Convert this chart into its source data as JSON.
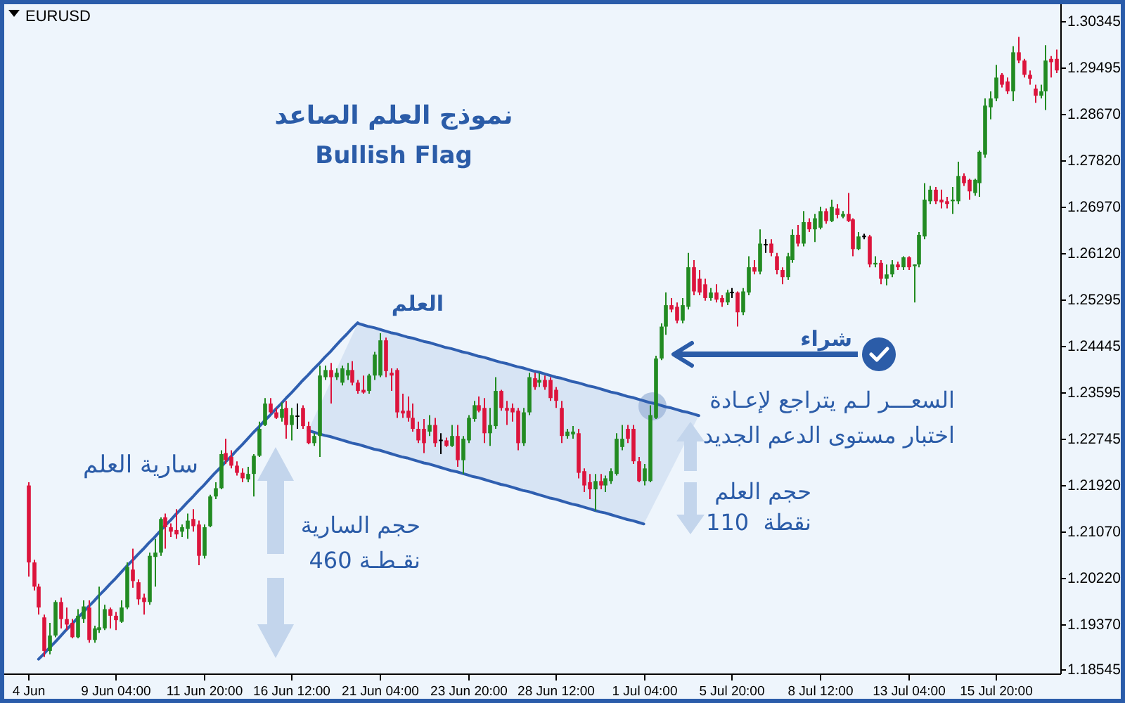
{
  "chart_data": {
    "type": "candlestick",
    "title": "نموذج العلم الصاعد",
    "subtitle": "Bullish Flag",
    "categories": [
      "4 Jun",
      null,
      null,
      null,
      null,
      null,
      null,
      null,
      null,
      null,
      null,
      null,
      null,
      null,
      null,
      null,
      "9 Jun 04:00",
      null,
      null,
      null,
      null,
      null,
      null,
      null,
      null,
      null,
      null,
      null,
      null,
      null,
      null,
      null,
      "11 Jun 20:00",
      null,
      null,
      null,
      null,
      null,
      null,
      null,
      null,
      null,
      null,
      null,
      null,
      null,
      null,
      null,
      "16 Jun 12:00",
      null,
      null,
      null,
      null,
      null,
      null,
      null,
      null,
      null,
      null,
      null,
      null,
      null,
      null,
      null,
      "21 Jun 04:00",
      null,
      null,
      null,
      null,
      null,
      null,
      null,
      null,
      null,
      null,
      null,
      null,
      null,
      null,
      null,
      "23 Jun 20:00",
      null,
      null,
      null,
      null,
      null,
      null,
      null,
      null,
      null,
      null,
      null,
      null,
      null,
      null,
      null,
      "28 Jun 12:00",
      null,
      null,
      null,
      null,
      null,
      null,
      null,
      null,
      null,
      null,
      null,
      null,
      null,
      null,
      null,
      "1 Jul 04:00",
      null,
      null,
      null,
      null,
      null,
      null,
      null,
      null,
      null,
      null,
      null,
      null,
      null,
      null,
      null,
      "5 Jul 20:00",
      null,
      null,
      null,
      null,
      null,
      null,
      null,
      null,
      null,
      null,
      null,
      null,
      null,
      null,
      null,
      "8 Jul 12:00",
      null,
      null,
      null,
      null,
      null,
      null,
      null,
      null,
      null,
      null,
      null,
      null,
      null,
      null,
      null,
      "13 Jul 04:00",
      null,
      null,
      null,
      null,
      null,
      null,
      null,
      null,
      null,
      null,
      null,
      null,
      null,
      null,
      null,
      "15 Jul 20:00",
      null,
      null,
      null,
      null,
      null,
      null,
      null,
      null,
      null,
      null,
      null
    ],
    "ohlc": [
      [
        1.219,
        1.2196,
        1.2024,
        1.205
      ],
      [
        1.205,
        1.2055,
        1.1999,
        1.2006
      ],
      [
        1.2006,
        1.2011,
        1.1955,
        1.1968
      ],
      [
        1.195,
        1.1955,
        1.1878,
        1.1889
      ],
      [
        1.1889,
        1.194,
        1.1883,
        1.1917
      ],
      [
        1.1917,
        1.1981,
        1.1914,
        1.1978
      ],
      [
        1.1978,
        1.1986,
        1.193,
        1.1947
      ],
      [
        1.1947,
        1.1968,
        1.1927,
        1.1937
      ],
      [
        1.194,
        1.1947,
        1.1912,
        1.1914
      ],
      [
        1.1914,
        1.1965,
        1.1912,
        1.1953
      ],
      [
        1.1947,
        1.1981,
        1.194,
        1.197
      ],
      [
        1.1968,
        1.1981,
        1.1904,
        1.1909
      ],
      [
        1.1909,
        1.1935,
        1.1904,
        1.193
      ],
      [
        1.1927,
        1.2006,
        1.1922,
        1.1932
      ],
      [
        1.193,
        1.1973,
        1.1927,
        1.1965
      ],
      [
        1.1965,
        1.1968,
        1.193,
        1.1953
      ],
      [
        1.1953,
        1.196,
        1.1927,
        1.1945
      ],
      [
        1.1942,
        1.1981,
        1.194,
        1.1968
      ],
      [
        1.1968,
        1.205,
        1.1965,
        1.2042
      ],
      [
        1.2037,
        1.2075,
        1.2004,
        1.2016
      ],
      [
        1.2014,
        1.2019,
        1.1973,
        1.1983
      ],
      [
        1.1986,
        1.1993,
        1.1955,
        1.1978
      ],
      [
        1.1978,
        1.2068,
        1.1973,
        1.2062
      ],
      [
        1.206,
        1.2093,
        1.2006,
        1.2068
      ],
      [
        1.2068,
        1.2132,
        1.2062,
        1.2129
      ],
      [
        1.2132,
        1.2139,
        1.2075,
        1.2114
      ],
      [
        1.2114,
        1.2121,
        1.2096,
        1.2106
      ],
      [
        1.2109,
        1.2147,
        1.2093,
        1.2101
      ],
      [
        1.2106,
        1.2119,
        1.2096,
        1.2114
      ],
      [
        1.2111,
        1.2139,
        1.2093,
        1.2126
      ],
      [
        1.2129,
        1.2147,
        1.2106,
        1.2116
      ],
      [
        1.2119,
        1.2126,
        1.2045,
        1.2062
      ],
      [
        1.2062,
        1.2119,
        1.2057,
        1.2114
      ],
      [
        1.2116,
        1.2173,
        1.2114,
        1.217
      ],
      [
        1.217,
        1.2196,
        1.2165,
        1.2185
      ],
      [
        1.2185,
        1.2254,
        1.2183,
        1.2247
      ],
      [
        1.2249,
        1.2275,
        1.2229,
        1.2236
      ],
      [
        1.2242,
        1.2254,
        1.2221,
        1.2226
      ],
      [
        1.2226,
        1.2234,
        1.2208,
        1.2213
      ],
      [
        1.2213,
        1.2221,
        1.2196,
        1.2203
      ],
      [
        1.2201,
        1.2224,
        1.2196,
        1.2211
      ],
      [
        1.2211,
        1.2247,
        1.217,
        1.2244
      ],
      [
        1.2244,
        1.2306,
        1.2242,
        1.2293
      ],
      [
        1.23,
        1.2349,
        1.2298,
        1.2339
      ],
      [
        1.2339,
        1.2349,
        1.2321,
        1.2323
      ],
      [
        1.2323,
        1.2331,
        1.2311,
        1.2313
      ],
      [
        1.2313,
        1.2341,
        1.2306,
        1.2329
      ],
      [
        1.2331,
        1.2344,
        1.2275,
        1.23
      ],
      [
        1.23,
        1.2331,
        1.2272,
        1.2318
      ],
      [
        1.2316,
        1.2339,
        1.2293,
        1.2316
      ],
      [
        1.2331,
        1.2336,
        1.2293,
        1.2298
      ],
      [
        1.2298,
        1.2306,
        1.2265,
        1.2267
      ],
      [
        1.2267,
        1.2285,
        1.2262,
        1.228
      ],
      [
        1.228,
        1.2408,
        1.2242,
        1.239
      ],
      [
        1.2387,
        1.2408,
        1.2382,
        1.24
      ],
      [
        1.24,
        1.2413,
        1.2339,
        1.2387
      ],
      [
        1.2387,
        1.2403,
        1.2382,
        1.2395
      ],
      [
        1.2377,
        1.2408,
        1.2372,
        1.2403
      ],
      [
        1.239,
        1.2413,
        1.2382,
        1.24
      ],
      [
        1.24,
        1.2416,
        1.2372,
        1.2377
      ],
      [
        1.2377,
        1.2382,
        1.2357,
        1.2362
      ],
      [
        1.2364,
        1.239,
        1.2357,
        1.2359
      ],
      [
        1.2362,
        1.2393,
        1.2357,
        1.239
      ],
      [
        1.239,
        1.2433,
        1.2382,
        1.2428
      ],
      [
        1.239,
        1.2467,
        1.2387,
        1.2454
      ],
      [
        1.2454,
        1.2459,
        1.2387,
        1.2398
      ],
      [
        1.2395,
        1.2403,
        1.2362,
        1.239
      ],
      [
        1.24,
        1.2403,
        1.2313,
        1.2323
      ],
      [
        1.2326,
        1.2357,
        1.2313,
        1.2321
      ],
      [
        1.2326,
        1.2352,
        1.2306,
        1.2313
      ],
      [
        1.2313,
        1.2339,
        1.2288,
        1.2293
      ],
      [
        1.2293,
        1.2306,
        1.2267,
        1.2272
      ],
      [
        1.2293,
        1.2311,
        1.2249,
        1.2267
      ],
      [
        1.2288,
        1.2318,
        1.228,
        1.23
      ],
      [
        1.23,
        1.2313,
        1.226,
        1.2267
      ],
      [
        1.2272,
        1.2285,
        1.2247,
        1.2272
      ],
      [
        1.2272,
        1.2277,
        1.226,
        1.2262
      ],
      [
        1.2262,
        1.23,
        1.226,
        1.228
      ],
      [
        1.228,
        1.23,
        1.2224,
        1.2236
      ],
      [
        1.2236,
        1.228,
        1.2211,
        1.2275
      ],
      [
        1.2272,
        1.2318,
        1.2267,
        1.2313
      ],
      [
        1.2311,
        1.2344,
        1.2306,
        1.2336
      ],
      [
        1.2336,
        1.2352,
        1.2323,
        1.2326
      ],
      [
        1.2331,
        1.2349,
        1.2267,
        1.2285
      ],
      [
        1.2285,
        1.2331,
        1.2262,
        1.23
      ],
      [
        1.2298,
        1.2387,
        1.2293,
        1.2362
      ],
      [
        1.2362,
        1.2364,
        1.2326,
        1.2331
      ],
      [
        1.2331,
        1.2344,
        1.23,
        1.2326
      ],
      [
        1.2331,
        1.2339,
        1.2306,
        1.2323
      ],
      [
        1.2326,
        1.2331,
        1.2254,
        1.2267
      ],
      [
        1.2267,
        1.2331,
        1.2262,
        1.2323
      ],
      [
        1.2323,
        1.2395,
        1.2318,
        1.2387
      ],
      [
        1.2385,
        1.2395,
        1.2364,
        1.2369
      ],
      [
        1.2377,
        1.2395,
        1.2369,
        1.2382
      ],
      [
        1.2382,
        1.239,
        1.2364,
        1.2369
      ],
      [
        1.2382,
        1.2387,
        1.2344,
        1.2349
      ],
      [
        1.2364,
        1.2369,
        1.2331,
        1.2344
      ],
      [
        1.2331,
        1.2344,
        1.2267,
        1.228
      ],
      [
        1.228,
        1.2293,
        1.2275,
        1.2288
      ],
      [
        1.2283,
        1.2298,
        1.2275,
        1.2288
      ],
      [
        1.2285,
        1.2293,
        1.2203,
        1.2213
      ],
      [
        1.2216,
        1.2221,
        1.2178,
        1.219
      ],
      [
        1.2196,
        1.2211,
        1.2165,
        1.2183
      ],
      [
        1.2183,
        1.2211,
        1.2144,
        1.2198
      ],
      [
        1.2198,
        1.2211,
        1.2183,
        1.219
      ],
      [
        1.219,
        1.2208,
        1.2178,
        1.2203
      ],
      [
        1.2198,
        1.2221,
        1.2193,
        1.2216
      ],
      [
        1.2211,
        1.2285,
        1.2208,
        1.2275
      ],
      [
        1.226,
        1.23,
        1.2254,
        1.2275
      ],
      [
        1.2293,
        1.23,
        1.2267,
        1.2275
      ],
      [
        1.2293,
        1.23,
        1.2229,
        1.2234
      ],
      [
        1.2234,
        1.2242,
        1.2196,
        1.2198
      ],
      [
        1.2198,
        1.2229,
        1.219,
        1.2221
      ],
      [
        1.2198,
        1.2336,
        1.2196,
        1.2318
      ],
      [
        1.2313,
        1.2426,
        1.2311,
        1.2421
      ],
      [
        1.2421,
        1.2485,
        1.2418,
        1.2479
      ],
      [
        1.2479,
        1.2541,
        1.2464,
        1.2518
      ],
      [
        1.2518,
        1.2531,
        1.2505,
        1.251
      ],
      [
        1.2515,
        1.2523,
        1.2485,
        1.249
      ],
      [
        1.249,
        1.2531,
        1.2485,
        1.2518
      ],
      [
        1.2515,
        1.2613,
        1.251,
        1.2587
      ],
      [
        1.2587,
        1.26,
        1.2536,
        1.2543
      ],
      [
        1.2566,
        1.2582,
        1.2536,
        1.2541
      ],
      [
        1.2556,
        1.2566,
        1.2526,
        1.2531
      ],
      [
        1.2531,
        1.2549,
        1.2526,
        1.2541
      ],
      [
        1.2541,
        1.2556,
        1.2523,
        1.2528
      ],
      [
        1.2531,
        1.2536,
        1.2515,
        1.2523
      ],
      [
        1.2523,
        1.2546,
        1.2518,
        1.2541
      ],
      [
        1.2541,
        1.2549,
        1.2531,
        1.2541
      ],
      [
        1.2541,
        1.2543,
        1.2479,
        1.2505
      ],
      [
        1.2505,
        1.2549,
        1.25,
        1.2543
      ],
      [
        1.2541,
        1.2607,
        1.2536,
        1.2587
      ],
      [
        1.2587,
        1.26,
        1.2574,
        1.2579
      ],
      [
        1.2579,
        1.2656,
        1.2574,
        1.263
      ],
      [
        1.2628,
        1.2638,
        1.2613,
        1.2628
      ],
      [
        1.263,
        1.2638,
        1.2607,
        1.2613
      ],
      [
        1.2607,
        1.2613,
        1.2574,
        1.2582
      ],
      [
        1.2582,
        1.2587,
        1.2556,
        1.2569
      ],
      [
        1.2569,
        1.2613,
        1.2564,
        1.2607
      ],
      [
        1.26,
        1.2656,
        1.2595,
        1.2646
      ],
      [
        1.2646,
        1.2664,
        1.2625,
        1.263
      ],
      [
        1.263,
        1.2689,
        1.2625,
        1.2669
      ],
      [
        1.2669,
        1.2676,
        1.2651,
        1.2656
      ],
      [
        1.2656,
        1.2684,
        1.2633,
        1.2676
      ],
      [
        1.2659,
        1.2697,
        1.2656,
        1.2689
      ],
      [
        1.2689,
        1.2694,
        1.2666,
        1.2671
      ],
      [
        1.2671,
        1.271,
        1.2669,
        1.2697
      ],
      [
        1.2694,
        1.2702,
        1.2676,
        1.2682
      ],
      [
        1.2679,
        1.2689,
        1.2676,
        1.2684
      ],
      [
        1.2684,
        1.2722,
        1.2669,
        1.2671
      ],
      [
        1.2674,
        1.2676,
        1.2607,
        1.262
      ],
      [
        1.262,
        1.2651,
        1.2618,
        1.2643
      ],
      [
        1.2643,
        1.2648,
        1.2638,
        1.2643
      ],
      [
        1.2643,
        1.2646,
        1.2587,
        1.2592
      ],
      [
        1.2592,
        1.2607,
        1.2587,
        1.2595
      ],
      [
        1.2595,
        1.26,
        1.2556,
        1.2566
      ],
      [
        1.2566,
        1.2592,
        1.2554,
        1.2574
      ],
      [
        1.2574,
        1.26,
        1.2569,
        1.2592
      ],
      [
        1.2592,
        1.2597,
        1.2582,
        1.2587
      ],
      [
        1.2587,
        1.2607,
        1.2582,
        1.2605
      ],
      [
        1.2605,
        1.2607,
        1.2582,
        1.2587
      ],
      [
        1.2589,
        1.2592,
        1.2523,
        1.2592
      ],
      [
        1.2592,
        1.2651,
        1.2587,
        1.2646
      ],
      [
        1.2643,
        1.274,
        1.2638,
        1.271
      ],
      [
        1.2707,
        1.2735,
        1.2702,
        1.2728
      ],
      [
        1.2728,
        1.2733,
        1.2702,
        1.2707
      ],
      [
        1.271,
        1.2728,
        1.2694,
        1.2705
      ],
      [
        1.2707,
        1.2715,
        1.2694,
        1.2702
      ],
      [
        1.2707,
        1.2733,
        1.2684,
        1.271
      ],
      [
        1.2707,
        1.2779,
        1.2702,
        1.2753
      ],
      [
        1.2753,
        1.2758,
        1.2735,
        1.274
      ],
      [
        1.2746,
        1.2748,
        1.271,
        1.2725
      ],
      [
        1.2722,
        1.2748,
        1.2717,
        1.2746
      ],
      [
        1.274,
        1.2799,
        1.2715,
        1.2797
      ],
      [
        1.2792,
        1.2894,
        1.2786,
        1.2881
      ],
      [
        1.2878,
        1.2907,
        1.2856,
        1.2894
      ],
      [
        1.2894,
        1.2955,
        1.2889,
        1.2932
      ],
      [
        1.2937,
        1.294,
        1.2914,
        1.2919
      ],
      [
        1.2925,
        1.2932,
        1.2902,
        1.2907
      ],
      [
        1.2907,
        1.2989,
        1.2889,
        1.2978
      ],
      [
        1.2978,
        1.3006,
        1.2958,
        1.2963
      ],
      [
        1.2963,
        1.2966,
        1.2932,
        1.2937
      ],
      [
        1.2937,
        1.2945,
        1.2919,
        1.293
      ],
      [
        1.2912,
        1.2919,
        1.2886,
        1.2899
      ],
      [
        1.2899,
        1.2919,
        1.2894,
        1.2907
      ],
      [
        1.2907,
        1.2991,
        1.2873,
        1.2963
      ],
      [
        1.2966,
        1.2971,
        1.2932,
        1.296
      ],
      [
        1.2966,
        1.2983,
        1.294,
        1.2945
      ]
    ],
    "colors": [
      "#dc143c",
      "#dc143c",
      "#dc143c",
      "#dc143c",
      "#228b22",
      "#228b22",
      "#dc143c",
      "#dc143c",
      "#dc143c",
      "#228b22",
      "#228b22",
      "#dc143c",
      "#228b22",
      "#228b22",
      "#228b22",
      "#dc143c",
      "#dc143c",
      "#228b22",
      "#228b22",
      "#dc143c",
      "#dc143c",
      "#dc143c",
      "#228b22",
      "#228b22",
      "#228b22",
      "#dc143c",
      "#dc143c",
      "#dc143c",
      "#228b22",
      "#228b22",
      "#dc143c",
      "#dc143c",
      "#228b22",
      "#228b22",
      "#228b22",
      "#228b22",
      "#dc143c",
      "#dc143c",
      "#dc143c",
      "#dc143c",
      "#228b22",
      "#228b22",
      "#228b22",
      "#228b22",
      "#dc143c",
      "#dc143c",
      "#228b22",
      "#dc143c",
      "#228b22",
      "#000000",
      "#dc143c",
      "#dc143c",
      "#228b22",
      "#228b22",
      "#228b22",
      "#dc143c",
      "#228b22",
      "#228b22",
      "#228b22",
      "#dc143c",
      "#dc143c",
      "#dc143c",
      "#228b22",
      "#228b22",
      "#228b22",
      "#dc143c",
      "#dc143c",
      "#dc143c",
      "#dc143c",
      "#dc143c",
      "#dc143c",
      "#dc143c",
      "#dc143c",
      "#228b22",
      "#dc143c",
      "#000000",
      "#dc143c",
      "#228b22",
      "#dc143c",
      "#228b22",
      "#228b22",
      "#228b22",
      "#dc143c",
      "#dc143c",
      "#228b22",
      "#228b22",
      "#dc143c",
      "#dc143c",
      "#dc143c",
      "#dc143c",
      "#228b22",
      "#228b22",
      "#dc143c",
      "#228b22",
      "#dc143c",
      "#dc143c",
      "#dc143c",
      "#dc143c",
      "#228b22",
      "#228b22",
      "#dc143c",
      "#dc143c",
      "#dc143c",
      "#228b22",
      "#dc143c",
      "#228b22",
      "#228b22",
      "#228b22",
      "#228b22",
      "#dc143c",
      "#dc143c",
      "#dc143c",
      "#228b22",
      "#228b22",
      "#228b22",
      "#228b22",
      "#228b22",
      "#dc143c",
      "#dc143c",
      "#228b22",
      "#228b22",
      "#dc143c",
      "#dc143c",
      "#dc143c",
      "#228b22",
      "#dc143c",
      "#dc143c",
      "#228b22",
      "#000000",
      "#dc143c",
      "#228b22",
      "#228b22",
      "#dc143c",
      "#228b22",
      "#000000",
      "#dc143c",
      "#dc143c",
      "#dc143c",
      "#228b22",
      "#228b22",
      "#dc143c",
      "#228b22",
      "#dc143c",
      "#228b22",
      "#228b22",
      "#dc143c",
      "#228b22",
      "#dc143c",
      "#228b22",
      "#dc143c",
      "#dc143c",
      "#228b22",
      "#000000",
      "#dc143c",
      "#228b22",
      "#dc143c",
      "#228b22",
      "#228b22",
      "#dc143c",
      "#228b22",
      "#dc143c",
      "#228b22",
      "#228b22",
      "#228b22",
      "#228b22",
      "#dc143c",
      "#dc143c",
      "#dc143c",
      "#228b22",
      "#228b22",
      "#dc143c",
      "#dc143c",
      "#228b22",
      "#228b22",
      "#228b22",
      "#228b22",
      "#228b22",
      "#dc143c",
      "#dc143c",
      "#228b22",
      "#dc143c",
      "#dc143c",
      "#dc143c",
      "#dc143c",
      "#228b22",
      "#228b22",
      "#dc143c",
      "#dc143c"
    ],
    "series": [
      {
        "type": "line",
        "color": "#2f5fb0",
        "values": [
          null,
          null,
          1.1874,
          1.1884,
          1.1895,
          1.1905,
          1.1916,
          1.1927,
          1.1937,
          1.1948,
          1.1958,
          1.1969,
          1.1979,
          1.199,
          1.2,
          1.2011,
          1.2021,
          1.2032,
          1.2043,
          1.2053,
          1.2064,
          1.2074,
          1.2085,
          1.2095,
          1.2106,
          1.2117,
          1.2127,
          1.2138,
          1.2148,
          1.2159,
          1.2169,
          1.218,
          1.219,
          1.2201,
          1.2212,
          1.2222,
          1.2233,
          1.2243,
          1.2254,
          1.2264,
          1.2275,
          1.2286,
          1.2296,
          1.2307,
          1.2317,
          1.2328,
          1.2338,
          1.2349,
          1.2359,
          1.237,
          1.2381,
          1.2391,
          1.2402,
          1.2412,
          1.2423,
          1.2433,
          1.2444,
          1.2455,
          1.2465,
          1.2476,
          1.2486,
          null,
          null,
          null,
          null,
          null,
          null,
          null,
          null,
          null,
          null,
          null,
          null,
          null,
          null,
          null,
          null,
          null,
          null,
          null,
          null,
          null,
          null,
          null,
          null,
          null,
          null,
          null,
          null,
          null,
          null,
          null,
          null,
          null,
          null,
          null,
          null,
          null,
          null,
          null,
          null,
          null,
          null,
          null,
          null,
          null,
          null,
          null,
          null,
          null,
          null,
          null,
          null,
          null,
          null,
          null,
          null,
          null,
          null,
          null,
          null,
          null,
          null,
          null,
          null,
          null,
          null,
          null,
          null,
          null,
          null,
          null,
          null,
          null,
          null,
          null,
          null,
          null,
          null,
          null,
          null,
          null,
          null,
          null,
          null,
          null,
          null,
          null,
          null,
          null,
          null,
          null,
          null,
          null,
          null,
          null,
          null,
          null,
          null,
          null,
          null,
          null,
          null,
          null,
          null,
          null,
          null,
          null,
          null,
          null,
          null,
          null,
          null,
          null,
          null,
          null,
          null,
          null,
          null,
          null,
          null,
          null,
          null,
          null,
          null,
          null,
          null,
          null
        ]
      },
      {
        "type": "line",
        "color": "#2f5fb0",
        "values": [
          null,
          null,
          null,
          null,
          null,
          null,
          null,
          null,
          null,
          null,
          null,
          null,
          null,
          null,
          null,
          null,
          null,
          null,
          null,
          null,
          null,
          null,
          null,
          null,
          null,
          null,
          null,
          null,
          null,
          null,
          null,
          null,
          null,
          null,
          null,
          null,
          null,
          null,
          null,
          null,
          null,
          null,
          null,
          null,
          null,
          null,
          null,
          null,
          null,
          null,
          null,
          null,
          null,
          null,
          null,
          null,
          null,
          null,
          null,
          null,
          1.2485,
          1.2482,
          1.2479,
          1.2477,
          1.2474,
          1.2471,
          1.2468,
          1.2466,
          1.2463,
          1.246,
          1.2458,
          1.2455,
          1.2452,
          1.245,
          1.2447,
          1.2444,
          1.2441,
          1.2439,
          1.2436,
          1.2433,
          1.2431,
          1.2428,
          1.2425,
          1.2423,
          1.242,
          1.2417,
          1.2414,
          1.2412,
          1.2409,
          1.2406,
          1.2404,
          1.2401,
          1.2398,
          1.2396,
          1.2393,
          1.239,
          1.2387,
          1.2385,
          1.2382,
          1.2379,
          1.2377,
          1.2374,
          1.2371,
          1.2369,
          1.2366,
          1.2363,
          1.236,
          1.2358,
          1.2355,
          1.2352,
          1.235,
          1.2347,
          1.2344,
          1.2341,
          1.2339,
          1.2336,
          1.2333,
          1.2331,
          1.2328,
          1.2325,
          1.2323,
          1.232,
          1.2317,
          null,
          null,
          null,
          null,
          null,
          null,
          null,
          null,
          null,
          null,
          null,
          null,
          null,
          null,
          null,
          null,
          null,
          null,
          null,
          null,
          null,
          null,
          null,
          null,
          null,
          null,
          null,
          null,
          null,
          null,
          null,
          null,
          null,
          null,
          null,
          null,
          null,
          null,
          null,
          null,
          null,
          null,
          null,
          null,
          null,
          null,
          null,
          null,
          null,
          null,
          null,
          null,
          null,
          null,
          null,
          null,
          null,
          null,
          null,
          null,
          null,
          null,
          null,
          null,
          null
        ]
      },
      {
        "type": "line",
        "color": "#2f5fb0",
        "values": [
          null,
          null,
          null,
          null,
          null,
          null,
          null,
          null,
          null,
          null,
          null,
          null,
          null,
          null,
          null,
          null,
          null,
          null,
          null,
          null,
          null,
          null,
          null,
          null,
          null,
          null,
          null,
          null,
          null,
          null,
          null,
          null,
          null,
          null,
          null,
          null,
          null,
          null,
          null,
          null,
          null,
          null,
          null,
          null,
          null,
          null,
          null,
          null,
          null,
          null,
          null,
          1.229,
          1.2287,
          1.2284,
          1.2281,
          1.2279,
          1.2276,
          1.2273,
          1.227,
          1.2267,
          1.2265,
          1.2262,
          1.2259,
          1.2256,
          1.2254,
          1.2251,
          1.2248,
          1.2245,
          1.2242,
          1.224,
          1.2237,
          1.2234,
          1.2231,
          1.2229,
          1.2226,
          1.2223,
          1.222,
          1.2217,
          1.2215,
          1.2212,
          1.2209,
          1.2206,
          1.2204,
          1.2201,
          1.2198,
          1.2195,
          1.2192,
          1.219,
          1.2187,
          1.2184,
          1.2181,
          1.2179,
          1.2176,
          1.2173,
          1.217,
          1.2167,
          1.2165,
          1.2162,
          1.2159,
          1.2156,
          1.2154,
          1.2151,
          1.2148,
          1.2145,
          1.2142,
          1.214,
          1.2137,
          1.2134,
          1.2131,
          1.2128,
          1.2126,
          1.2123,
          1.212,
          null,
          null,
          null,
          null,
          null,
          null,
          null,
          null,
          null,
          null,
          null,
          null,
          null,
          null,
          null,
          null,
          null,
          null,
          null,
          null,
          null,
          null,
          null,
          null,
          null,
          null,
          null,
          null,
          null,
          null,
          null,
          null,
          null,
          null,
          null,
          null,
          null,
          null,
          null,
          null,
          null,
          null,
          null,
          null,
          null,
          null,
          null,
          null,
          null,
          null,
          null,
          null,
          null,
          null,
          null,
          null,
          null,
          null,
          null,
          null,
          null,
          null,
          null,
          null,
          null,
          null,
          null,
          null,
          null,
          null,
          null,
          null,
          null,
          null,
          null
        ]
      }
    ],
    "ylim": [
      1.1848,
      1.3068
    ],
    "yticks": [
      1.30345,
      1.29495,
      {
        "value": 1.2867,
        "label": "1.28670"
      },
      {
        "value": 1.2782,
        "label": "1.27820"
      },
      {
        "value": 1.2697,
        "label": "1.26970"
      },
      {
        "value": 1.2612,
        "label": "1.26120"
      },
      1.25295,
      1.24445,
      1.23595,
      1.22745,
      {
        "value": 1.2192,
        "label": "1.21920"
      },
      {
        "value": 1.2107,
        "label": "1.21070"
      },
      {
        "value": 1.2022,
        "label": "1.20220"
      },
      {
        "value": 1.1937,
        "label": "1.19370"
      },
      1.18545
    ],
    "annotations": [
      "EURUSD",
      "سارية العلم",
      "العلم",
      "حجم السارية\n460 نقـطـة",
      "حجم العلم\n110  نقطة",
      "شراء",
      "السعـــر لـم يتراجع لإعـادة\nاختبار مستوى الدعم الجديد"
    ]
  }
}
